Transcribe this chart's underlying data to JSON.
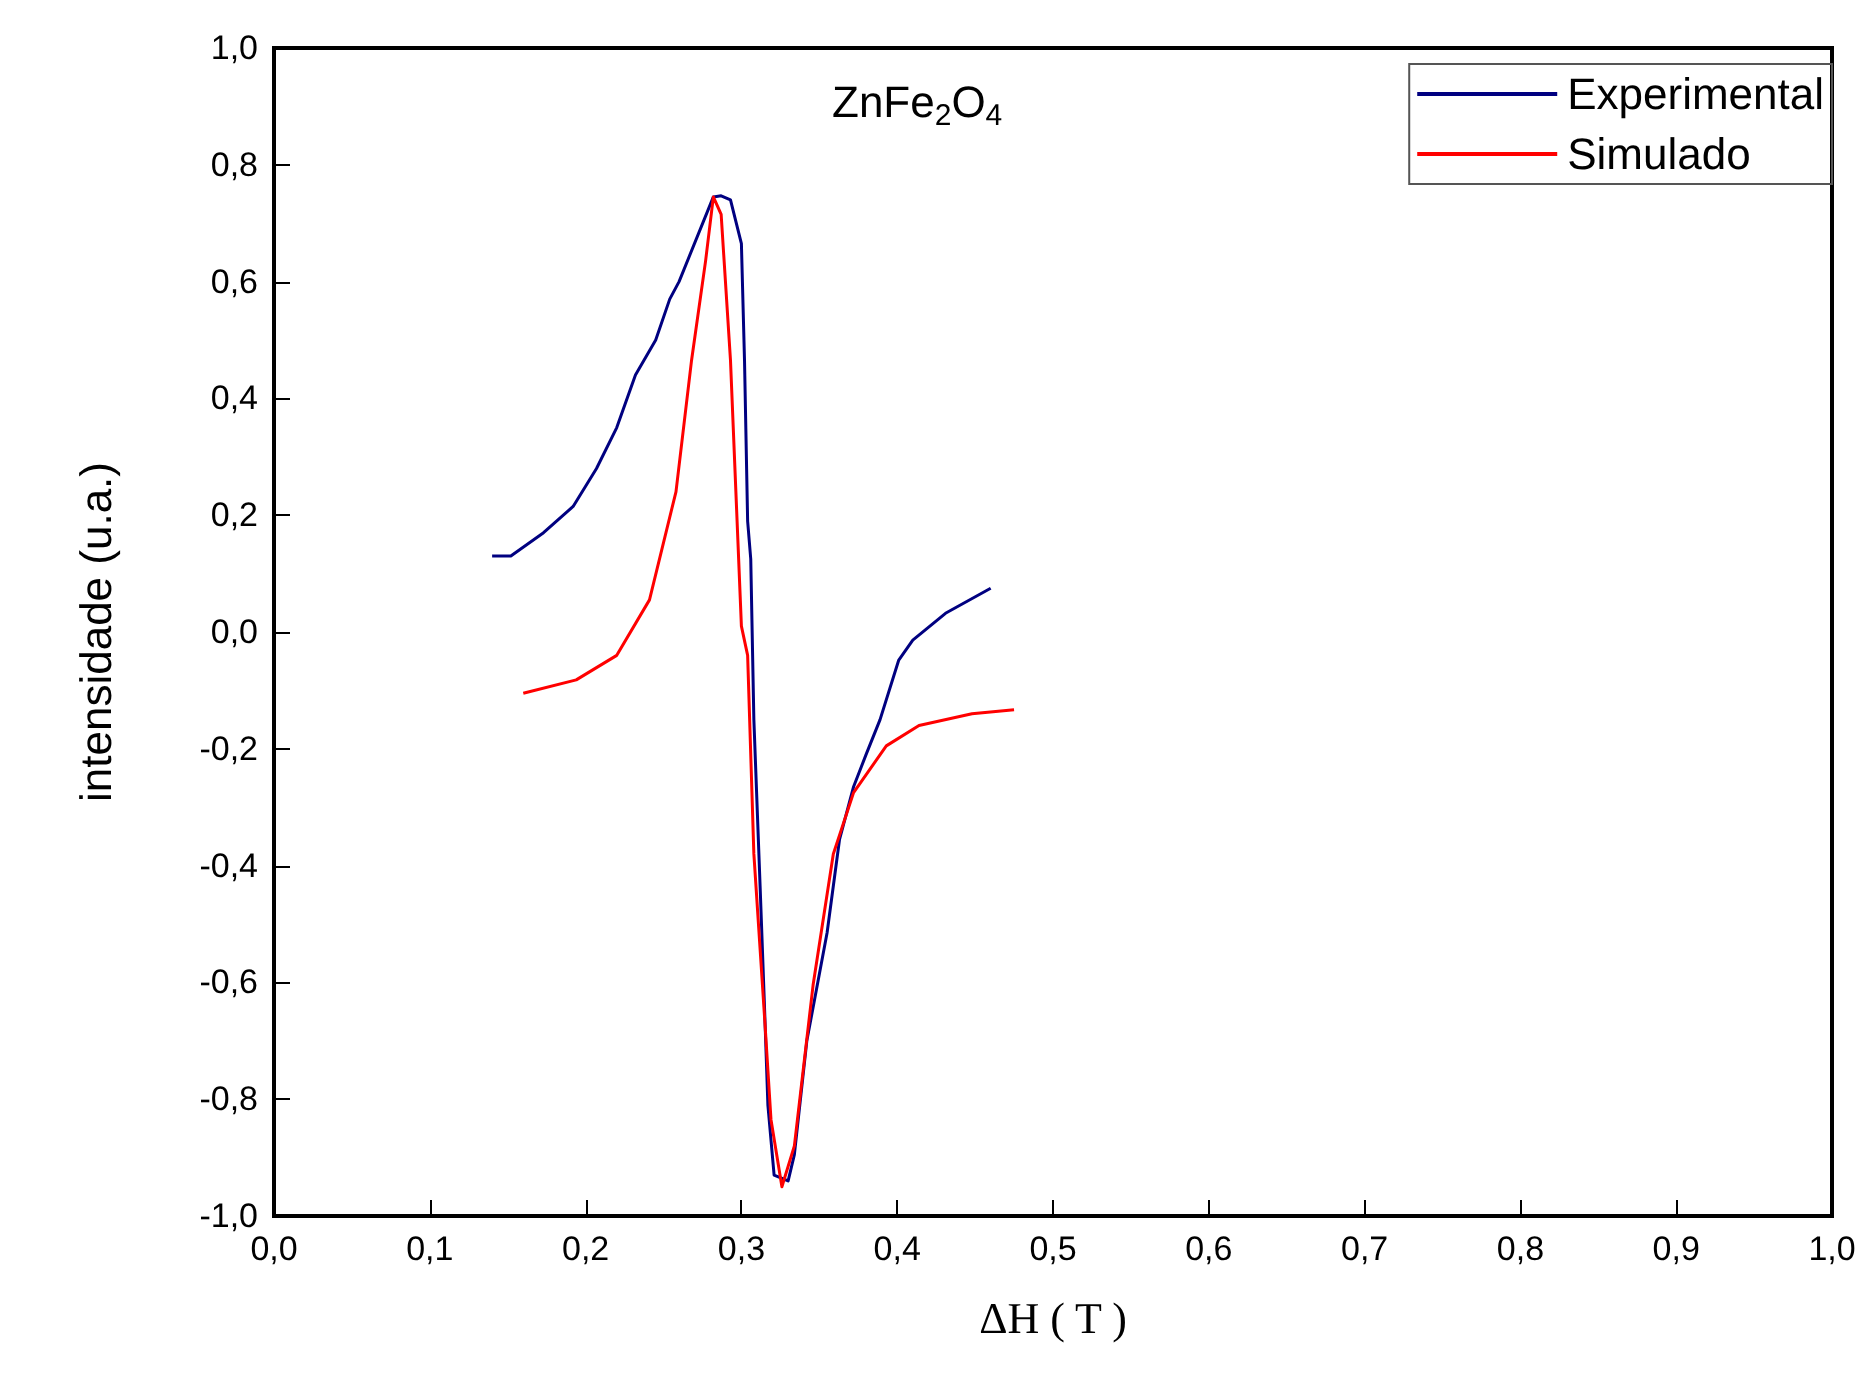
{
  "chart_data": {
    "type": "line",
    "xlabel": "ΔH ( T )",
    "ylabel": "intensidade (u.a.)",
    "annotations": [
      "ZnFe$_{2}$O$_{4}$"
    ],
    "xlim": [
      0,
      1
    ],
    "ylim": [
      -1,
      1
    ],
    "xticks": [
      {
        "value": 0,
        "label": "0,0"
      },
      {
        "value": 0.1,
        "label": "0,1"
      },
      {
        "value": 0.2,
        "label": "0,2"
      },
      {
        "value": 0.3,
        "label": "0,3"
      },
      {
        "value": 0.4,
        "label": "0,4"
      },
      {
        "value": 0.5,
        "label": "0,5"
      },
      {
        "value": 0.6,
        "label": "0,6"
      },
      {
        "value": 0.7,
        "label": "0,7"
      },
      {
        "value": 0.8,
        "label": "0,8"
      },
      {
        "value": 0.9,
        "label": "0,9"
      },
      {
        "value": 1,
        "label": "1,0"
      }
    ],
    "yticks": [
      {
        "value": -1,
        "label": "-1,0"
      },
      {
        "value": -0.8,
        "label": "-0,8"
      },
      {
        "value": -0.6,
        "label": "-0,6"
      },
      {
        "value": -0.4,
        "label": "-0,4"
      },
      {
        "value": -0.2,
        "label": "-0,2"
      },
      {
        "value": 0,
        "label": "0,0"
      },
      {
        "value": 0.2,
        "label": "0,2"
      },
      {
        "value": 0.4,
        "label": "0,4"
      },
      {
        "value": 0.6,
        "label": "0,6"
      },
      {
        "value": 0.8,
        "label": "0,8"
      },
      {
        "value": 1,
        "label": "1,0"
      }
    ],
    "grid": false,
    "legend": "top right",
    "marker": "none",
    "line_style": "solid",
    "series": [
      {
        "name": "Experimental",
        "color": "#000080",
        "x": [
          0.14,
          0.152,
          0.173,
          0.192,
          0.207,
          0.22,
          0.232,
          0.245,
          0.254,
          0.26,
          0.282,
          0.287,
          0.293,
          0.3,
          0.302,
          0.304,
          0.306,
          0.308,
          0.312,
          0.315,
          0.317,
          0.321,
          0.33,
          0.334,
          0.342,
          0.355,
          0.363,
          0.372,
          0.38,
          0.389,
          0.401,
          0.41,
          0.431,
          0.46
        ],
        "values": [
          0.13,
          0.13,
          0.17,
          0.215,
          0.28,
          0.35,
          0.44,
          0.5,
          0.57,
          0.6,
          0.745,
          0.747,
          0.74,
          0.665,
          0.465,
          0.19,
          0.125,
          -0.15,
          -0.435,
          -0.655,
          -0.81,
          -0.93,
          -0.94,
          -0.895,
          -0.7,
          -0.515,
          -0.355,
          -0.265,
          -0.21,
          -0.15,
          -0.048,
          -0.014,
          0.032,
          0.075
        ]
      },
      {
        "name": "Simulado",
        "color": "#ff0000",
        "x": [
          0.16,
          0.194,
          0.22,
          0.241,
          0.258,
          0.268,
          0.277,
          0.282,
          0.287,
          0.293,
          0.3,
          0.304,
          0.308,
          0.315,
          0.319,
          0.326,
          0.334,
          0.346,
          0.359,
          0.372,
          0.393,
          0.414,
          0.448,
          0.475
        ],
        "values": [
          -0.105,
          -0.082,
          -0.04,
          0.055,
          0.24,
          0.465,
          0.635,
          0.745,
          0.715,
          0.465,
          0.01,
          -0.04,
          -0.38,
          -0.665,
          -0.835,
          -0.95,
          -0.88,
          -0.605,
          -0.38,
          -0.275,
          -0.195,
          -0.16,
          -0.14,
          -0.133
        ]
      }
    ]
  }
}
